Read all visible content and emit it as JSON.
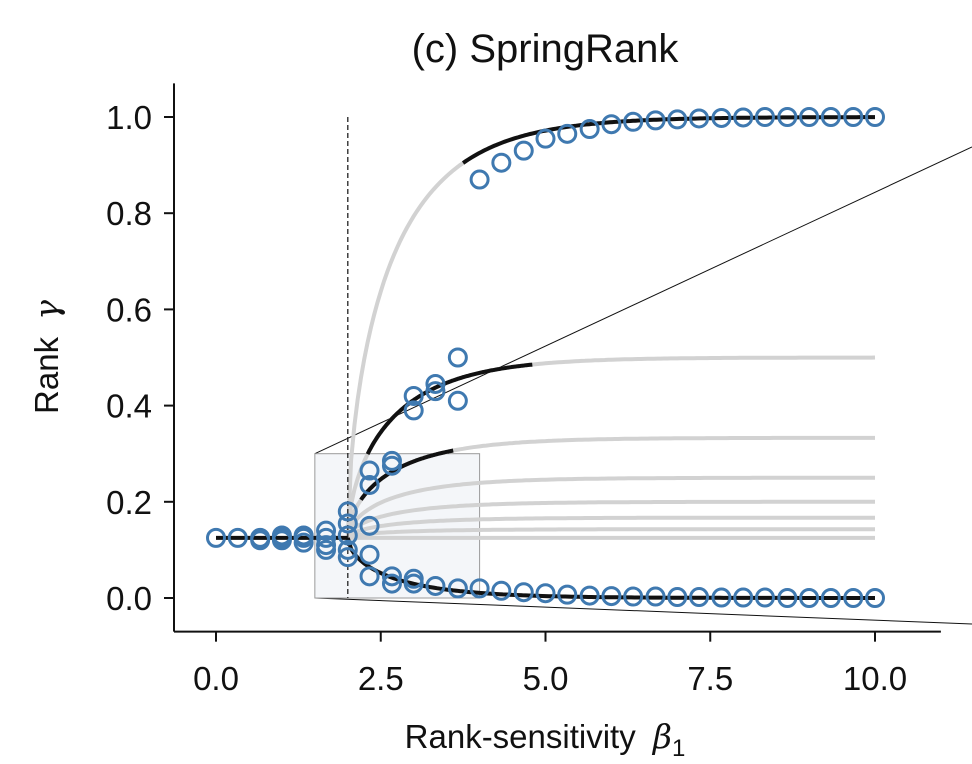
{
  "chart_data": {
    "type": "scatter",
    "title": "(c) SpringRank",
    "xlabel": {
      "text": "Rank-sensitivity",
      "symbol": "β",
      "subscript": "1"
    },
    "ylabel": {
      "text": "Rank",
      "symbol": "γ"
    },
    "xlim": [
      -1.3,
      11.0
    ],
    "ylim": [
      -0.07,
      1.07
    ],
    "xticks": [
      0,
      2.5,
      5,
      7.5,
      10
    ],
    "xtick_labels": [
      "0.0",
      "2.5",
      "5.0",
      "7.5",
      "10.0"
    ],
    "yticks": [
      0,
      0.2,
      0.4,
      0.6,
      0.8,
      1.0
    ],
    "ytick_labels": [
      "0.0",
      "0.2",
      "0.4",
      "0.6",
      "0.8",
      "1.0"
    ],
    "critical_beta": 2.0,
    "inset_box": {
      "x": [
        1.5,
        4.0
      ],
      "y": [
        0.0,
        0.3
      ]
    },
    "colors": {
      "marker": "#3f79b0",
      "theory_stable": "#111111",
      "theory_unstable": "#d2d2d2",
      "box_fill": "#f4f6f9",
      "box_edge": "#9a9a9a"
    },
    "theory_branches": [
      {
        "name": "top",
        "asymptote": 1.0,
        "black_from": 3.75,
        "black_to": 10.0
      },
      {
        "name": "half",
        "asymptote": 0.5,
        "black_from": 2.3,
        "black_to": 4.8
      },
      {
        "name": "third",
        "asymptote": 0.333,
        "black_from": 2.2,
        "black_to": 3.6
      },
      {
        "name": "quarter",
        "asymptote": 0.25,
        "black_from": null,
        "black_to": null
      },
      {
        "name": "fifth",
        "asymptote": 0.2,
        "black_from": null,
        "black_to": null
      },
      {
        "name": "sixth",
        "asymptote": 0.167,
        "black_from": null,
        "black_to": null
      },
      {
        "name": "seventh",
        "asymptote": 0.143,
        "black_from": null,
        "black_to": null
      },
      {
        "name": "eighth",
        "asymptote": 0.125,
        "black_from": null,
        "black_to": null
      },
      {
        "name": "bottom",
        "asymptote": 0.0,
        "black_from": 2.0,
        "black_to": 10.0
      }
    ],
    "flat_line": {
      "y": 0.125,
      "x": [
        0.0,
        2.0
      ]
    },
    "points": {
      "x": [
        0,
        0.33,
        0.67,
        0.67,
        1.0,
        1.0,
        1.0,
        1.33,
        1.33,
        1.33,
        1.67,
        1.67,
        1.67,
        1.67,
        2.0,
        2.0,
        2.0,
        2.0,
        2.0,
        2.33,
        2.33,
        2.33,
        2.33,
        2.33,
        2.67,
        2.67,
        2.67,
        2.67,
        3.0,
        3.0,
        3.0,
        3.0,
        3.33,
        3.33,
        3.33,
        3.67,
        3.67,
        3.67,
        4.0,
        4.0,
        4.33,
        4.33,
        4.67,
        4.67,
        5.0,
        5.0,
        5.33,
        5.33,
        5.67,
        5.67,
        6.0,
        6.0,
        6.33,
        6.33,
        6.67,
        6.67,
        7.0,
        7.0,
        7.33,
        7.33,
        7.67,
        7.67,
        8.0,
        8.0,
        8.33,
        8.33,
        8.67,
        8.67,
        9.0,
        9.0,
        9.33,
        9.33,
        9.67,
        9.67,
        10.0,
        10.0
      ],
      "y": [
        0.125,
        0.125,
        0.125,
        0.12,
        0.125,
        0.13,
        0.12,
        0.125,
        0.13,
        0.115,
        0.14,
        0.125,
        0.11,
        0.1,
        0.18,
        0.155,
        0.13,
        0.1,
        0.085,
        0.265,
        0.235,
        0.15,
        0.09,
        0.045,
        0.285,
        0.275,
        0.045,
        0.03,
        0.42,
        0.39,
        0.04,
        0.03,
        0.445,
        0.43,
        0.025,
        0.5,
        0.41,
        0.02,
        0.87,
        0.02,
        0.905,
        0.015,
        0.93,
        0.012,
        0.955,
        0.01,
        0.965,
        0.007,
        0.975,
        0.005,
        0.985,
        0.004,
        0.99,
        0.003,
        0.993,
        0.003,
        0.995,
        0.002,
        0.997,
        0.002,
        0.998,
        0.001,
        0.999,
        0.001,
        1.0,
        0.001,
        1.0,
        0.0,
        1.0,
        0.0,
        1.0,
        0.0,
        1.0,
        0.0,
        1.0,
        0.0
      ]
    }
  }
}
